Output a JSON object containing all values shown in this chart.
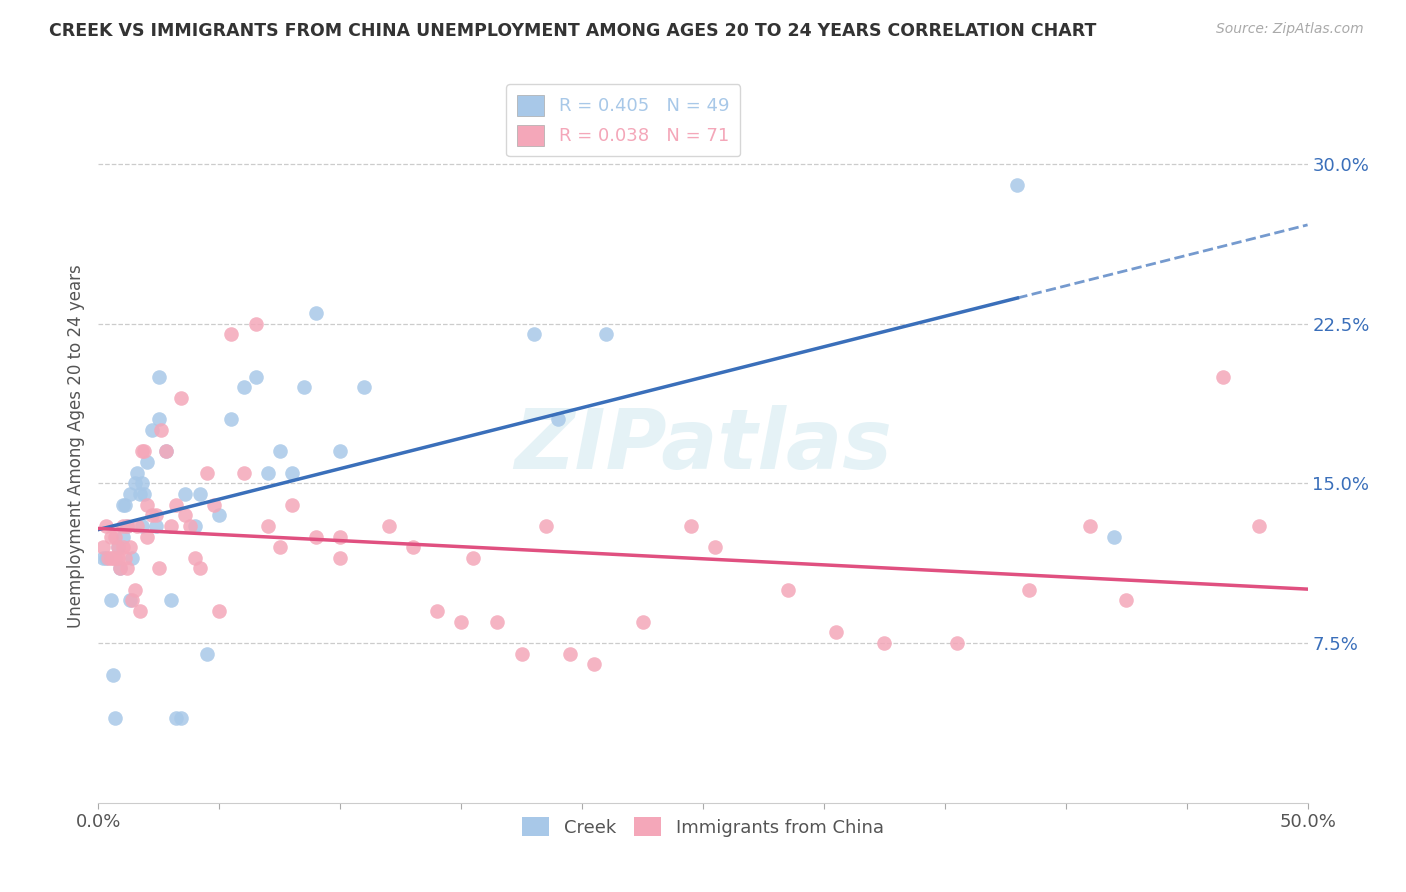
{
  "title": "CREEK VS IMMIGRANTS FROM CHINA UNEMPLOYMENT AMONG AGES 20 TO 24 YEARS CORRELATION CHART",
  "source": "Source: ZipAtlas.com",
  "ylabel": "Unemployment Among Ages 20 to 24 years",
  "ytick_labels": [
    "7.5%",
    "15.0%",
    "22.5%",
    "30.0%"
  ],
  "ytick_values": [
    0.075,
    0.15,
    0.225,
    0.3
  ],
  "xlim": [
    0.0,
    0.5
  ],
  "ylim": [
    0.0,
    0.335
  ],
  "creek_color": "#a8c8e8",
  "china_color": "#f4a7b9",
  "creek_line_color": "#3a6fba",
  "china_line_color": "#e05080",
  "creek_R": "0.405",
  "creek_N": "49",
  "china_R": "0.038",
  "china_N": "71",
  "legend_label_creek": "Creek",
  "legend_label_china": "Immigrants from China",
  "watermark": "ZIPatlas",
  "creek_x": [
    0.002,
    0.003,
    0.005,
    0.006,
    0.007,
    0.008,
    0.009,
    0.01,
    0.01,
    0.011,
    0.012,
    0.013,
    0.013,
    0.014,
    0.015,
    0.016,
    0.017,
    0.018,
    0.018,
    0.019,
    0.02,
    0.022,
    0.024,
    0.025,
    0.025,
    0.028,
    0.03,
    0.032,
    0.034,
    0.036,
    0.04,
    0.042,
    0.045,
    0.05,
    0.055,
    0.06,
    0.065,
    0.07,
    0.075,
    0.08,
    0.085,
    0.09,
    0.1,
    0.11,
    0.18,
    0.19,
    0.21,
    0.38,
    0.42
  ],
  "creek_y": [
    0.115,
    0.115,
    0.095,
    0.06,
    0.04,
    0.12,
    0.11,
    0.125,
    0.14,
    0.14,
    0.13,
    0.145,
    0.095,
    0.115,
    0.15,
    0.155,
    0.145,
    0.15,
    0.13,
    0.145,
    0.16,
    0.175,
    0.13,
    0.18,
    0.2,
    0.165,
    0.095,
    0.04,
    0.04,
    0.145,
    0.13,
    0.145,
    0.07,
    0.135,
    0.18,
    0.195,
    0.2,
    0.155,
    0.165,
    0.155,
    0.195,
    0.23,
    0.165,
    0.195,
    0.22,
    0.18,
    0.22,
    0.29,
    0.125
  ],
  "china_x": [
    0.002,
    0.003,
    0.004,
    0.005,
    0.005,
    0.006,
    0.007,
    0.007,
    0.008,
    0.008,
    0.009,
    0.01,
    0.01,
    0.011,
    0.012,
    0.012,
    0.013,
    0.014,
    0.015,
    0.016,
    0.017,
    0.018,
    0.019,
    0.02,
    0.02,
    0.022,
    0.024,
    0.025,
    0.026,
    0.028,
    0.03,
    0.032,
    0.034,
    0.036,
    0.038,
    0.04,
    0.042,
    0.045,
    0.048,
    0.05,
    0.055,
    0.06,
    0.065,
    0.07,
    0.075,
    0.08,
    0.09,
    0.1,
    0.1,
    0.12,
    0.13,
    0.14,
    0.15,
    0.155,
    0.165,
    0.175,
    0.185,
    0.195,
    0.205,
    0.225,
    0.245,
    0.255,
    0.285,
    0.305,
    0.325,
    0.355,
    0.385,
    0.41,
    0.425,
    0.465,
    0.48
  ],
  "china_y": [
    0.12,
    0.13,
    0.115,
    0.125,
    0.115,
    0.115,
    0.125,
    0.115,
    0.115,
    0.12,
    0.11,
    0.12,
    0.13,
    0.115,
    0.11,
    0.13,
    0.12,
    0.095,
    0.1,
    0.13,
    0.09,
    0.165,
    0.165,
    0.14,
    0.125,
    0.135,
    0.135,
    0.11,
    0.175,
    0.165,
    0.13,
    0.14,
    0.19,
    0.135,
    0.13,
    0.115,
    0.11,
    0.155,
    0.14,
    0.09,
    0.22,
    0.155,
    0.225,
    0.13,
    0.12,
    0.14,
    0.125,
    0.125,
    0.115,
    0.13,
    0.12,
    0.09,
    0.085,
    0.115,
    0.085,
    0.07,
    0.13,
    0.07,
    0.065,
    0.085,
    0.13,
    0.12,
    0.1,
    0.08,
    0.075,
    0.075,
    0.1,
    0.13,
    0.095,
    0.2,
    0.13
  ]
}
